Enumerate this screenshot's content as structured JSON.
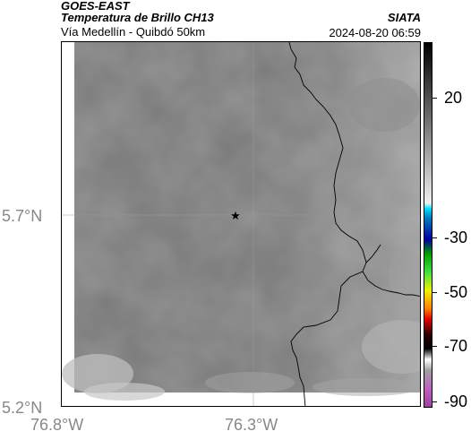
{
  "header": {
    "satellite": "GOES-EAST",
    "product": "Temperatura de Brillo CH13",
    "region": "Vía Medellín - Quibdó 50km",
    "organization": "SIATA",
    "timestamp": "2024-08-20 06:59"
  },
  "map": {
    "lat_ticks": [
      "5.7°N",
      "5.2°N"
    ],
    "lon_ticks": [
      "76.8°W",
      "76.3°W"
    ],
    "marker": "star-icon"
  },
  "colorbar": {
    "labels": [
      "20",
      "-30",
      "-50",
      "-70",
      "-90"
    ],
    "stops": [
      {
        "value": "top",
        "color": "#000000"
      },
      {
        "value": "mid",
        "color": "#e6e6e6"
      },
      {
        "value": "cold",
        "color": "#00c8ff"
      },
      {
        "value": "colder",
        "color": "#0000a0"
      },
      {
        "value": "green",
        "color": "#00c800"
      },
      {
        "value": "yellow",
        "color": "#f0f000"
      },
      {
        "value": "red",
        "color": "#e00000"
      },
      {
        "value": "black",
        "color": "#000000"
      },
      {
        "value": "magenta",
        "color": "#b040b0"
      }
    ]
  }
}
